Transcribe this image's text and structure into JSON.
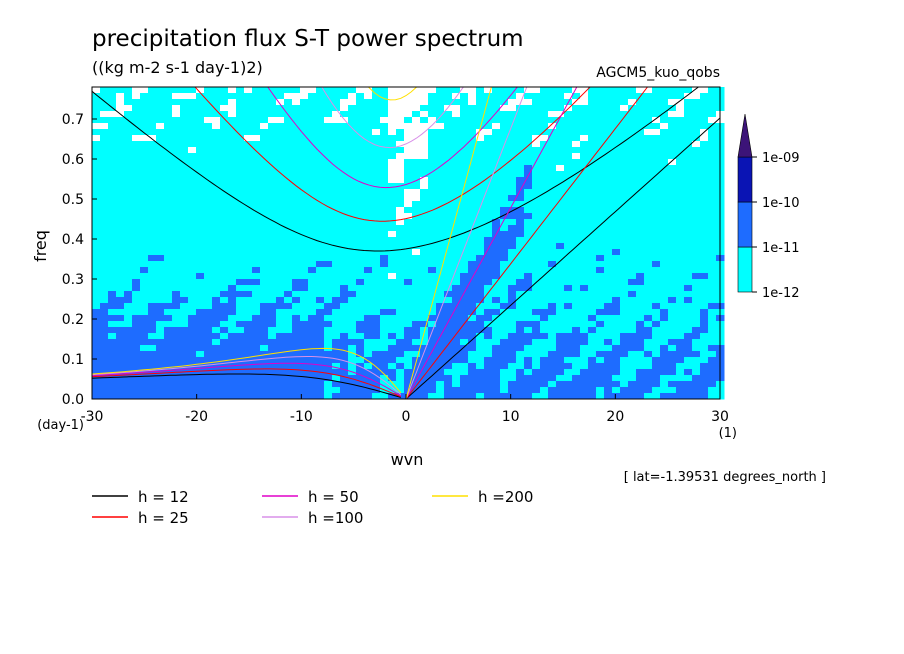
{
  "chart_data": {
    "type": "heatmap",
    "title": "precipitation flux S-T power spectrum",
    "units": "((kg m-2 s-1 day-1)2)",
    "run_label": "AGCM5_kuo_qobs",
    "xlabel": "wvn",
    "ylabel": "freq",
    "x_unit": "(1)",
    "y_unit": "(day-1)",
    "xlim": [
      -30,
      30
    ],
    "ylim": [
      0,
      0.78
    ],
    "x_ticks": [
      -30,
      -20,
      -10,
      0,
      10,
      20,
      30
    ],
    "y_ticks": [
      0.0,
      0.1,
      0.2,
      0.3,
      0.4,
      0.5,
      0.6,
      0.7
    ],
    "x_tick_labels": [
      "-30",
      "-20",
      "-10",
      "0",
      "10",
      "20",
      "30"
    ],
    "y_tick_labels": [
      "0.0",
      "0.1",
      "0.2",
      "0.3",
      "0.4",
      "0.5",
      "0.6",
      "0.7"
    ],
    "annotation": "[ lat=-1.39531 degrees_north ]",
    "colorbar": {
      "levels": [
        "1e-12",
        "1e-11",
        "1e-10",
        "1e-09"
      ],
      "colors": [
        "#ffffff",
        "#00ffff",
        "#1e6cff",
        "#0a14b4",
        "#3c1478"
      ]
    },
    "dispersion_curves": [
      {
        "label": "h = 12",
        "h": 12,
        "color": "#000000"
      },
      {
        "label": "h = 25",
        "h": 25,
        "color": "#ff0000"
      },
      {
        "label": "h = 50",
        "h": 50,
        "color": "#e000c8"
      },
      {
        "label": "h =100",
        "h": 100,
        "color": "#d890e8"
      },
      {
        "label": "h =200",
        "h": 200,
        "color": "#ffe000"
      }
    ]
  }
}
